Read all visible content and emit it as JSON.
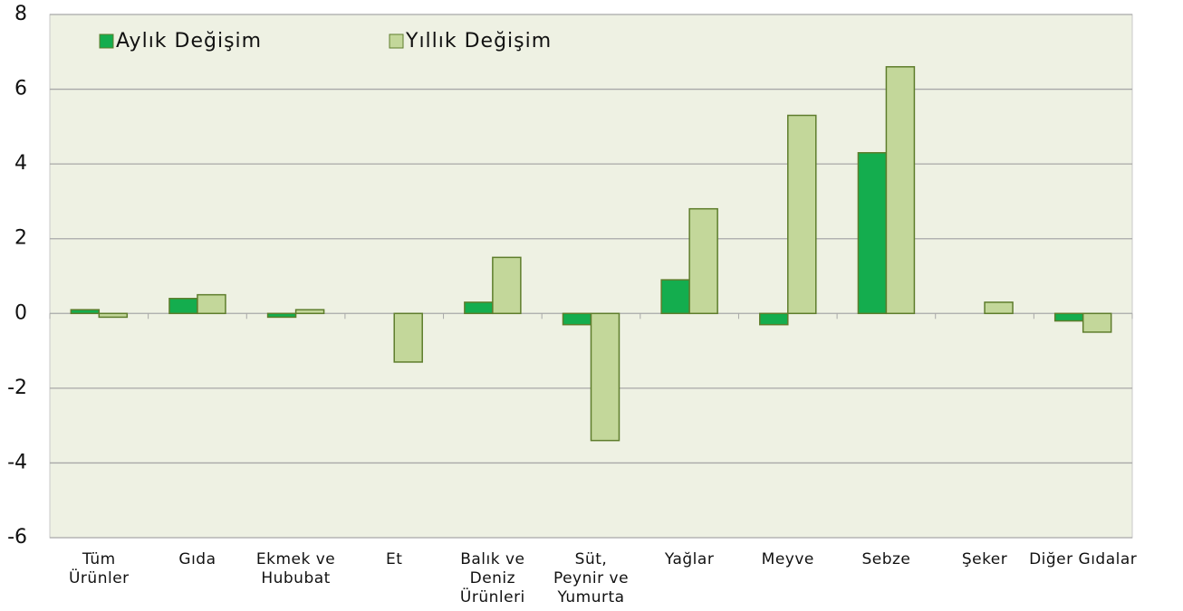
{
  "chart_data": {
    "type": "bar",
    "categories": [
      "Tüm\nÜrünler",
      "Gıda",
      "Ekmek ve\nHububat",
      "Et",
      "Balık ve\nDeniz\nÜrünleri",
      "Süt,\nPeynir ve\nYumurta",
      "Yağlar",
      "Meyve",
      "Sebze",
      "Şeker",
      "Diğer Gıdalar"
    ],
    "series": [
      {
        "name": "Aylık Değişim",
        "color": "#14ad4e",
        "values": [
          0.1,
          0.4,
          -0.1,
          0,
          0.3,
          -0.3,
          0.9,
          -0.3,
          4.3,
          0,
          -0.2
        ]
      },
      {
        "name": "Yıllık Değişim",
        "color": "#c3d79a",
        "values": [
          -0.1,
          0.5,
          0.1,
          -1.3,
          1.5,
          -3.4,
          2.8,
          5.3,
          6.6,
          0.3,
          -0.5
        ]
      }
    ],
    "ylim": [
      -6,
      8
    ],
    "yticks": [
      -6,
      -4,
      -2,
      0,
      2,
      4,
      6,
      8
    ],
    "grid": true,
    "legend": "top-left"
  }
}
